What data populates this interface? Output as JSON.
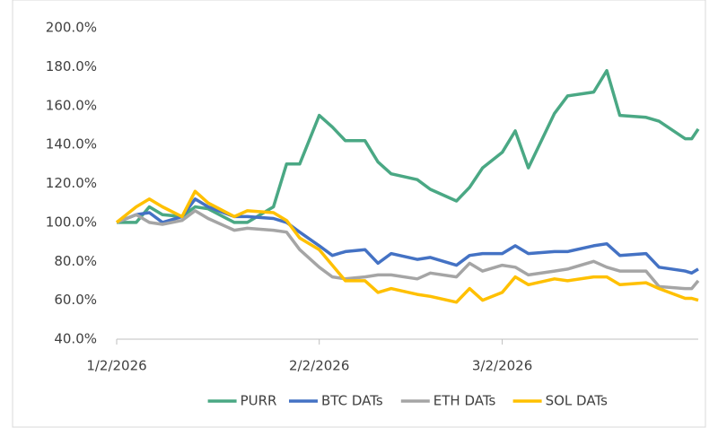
{
  "chart_data": {
    "type": "line",
    "x": [
      "1/2/2026",
      "1/5/2026",
      "1/7/2026",
      "1/9/2026",
      "1/12/2026",
      "1/14/2026",
      "1/16/2026",
      "1/20/2026",
      "1/22/2026",
      "1/26/2026",
      "1/28/2026",
      "1/30/2026",
      "2/2/2026",
      "2/4/2026",
      "2/6/2026",
      "2/9/2026",
      "2/11/2026",
      "2/13/2026",
      "2/17/2026",
      "2/19/2026",
      "2/23/2026",
      "2/25/2026",
      "2/27/2026",
      "3/2/2026",
      "3/4/2026",
      "3/6/2026",
      "3/10/2026",
      "3/12/2026",
      "3/16/2026",
      "3/18/2026",
      "3/20/2026",
      "3/24/2026",
      "3/26/2026",
      "3/30/2026",
      "3/31/2026",
      "4/1/2026"
    ],
    "series": [
      {
        "name": "PURR",
        "color": "#4aa884",
        "values": [
          100,
          100,
          108,
          104,
          103,
          108,
          107,
          100,
          100,
          108,
          130,
          130,
          155,
          149,
          142,
          142,
          131,
          125,
          122,
          117,
          111,
          118,
          128,
          136,
          147,
          128,
          156,
          165,
          167,
          178,
          155,
          154,
          152,
          143,
          143,
          148
        ]
      },
      {
        "name": "BTC DATs",
        "color": "#4472c4",
        "values": [
          100,
          104,
          105,
          100,
          103,
          112,
          108,
          103,
          103,
          102,
          100,
          95,
          88,
          83,
          85,
          86,
          79,
          84,
          81,
          82,
          78,
          83,
          84,
          84,
          88,
          84,
          85,
          85,
          88,
          89,
          83,
          84,
          77,
          75,
          74,
          76
        ]
      },
      {
        "name": "ETH DATs",
        "color": "#a5a5a5",
        "values": [
          100,
          104,
          100,
          99,
          101,
          106,
          102,
          96,
          97,
          96,
          95,
          86,
          77,
          72,
          71,
          72,
          73,
          73,
          71,
          74,
          72,
          79,
          75,
          78,
          77,
          73,
          75,
          76,
          80,
          77,
          75,
          75,
          67,
          66,
          66,
          70
        ]
      },
      {
        "name": "SOL DATs",
        "color": "#ffc000",
        "values": [
          100,
          108,
          112,
          108,
          103,
          116,
          110,
          103,
          106,
          105,
          101,
          92,
          86,
          78,
          70,
          70,
          64,
          66,
          63,
          62,
          59,
          66,
          60,
          64,
          72,
          68,
          71,
          70,
          72,
          72,
          68,
          69,
          66,
          61,
          61,
          60
        ]
      }
    ],
    "xlim": [
      "1/2/2026",
      "4/1/2026"
    ],
    "xticks": [
      "1/2/2026",
      "2/2/2026",
      "3/2/2026"
    ],
    "ylim": [
      40,
      200
    ],
    "yticks": [
      {
        "value": 40,
        "label": "40.0%"
      },
      {
        "value": 60,
        "label": "60.0%"
      },
      {
        "value": 80,
        "label": "80.0%"
      },
      {
        "value": 100,
        "label": "100.0%"
      },
      {
        "value": 120,
        "label": "120.0%"
      },
      {
        "value": 140,
        "label": "140.0%"
      },
      {
        "value": 160,
        "label": "160.0%"
      },
      {
        "value": 180,
        "label": "180.0%"
      },
      {
        "value": 200,
        "label": "200.0%"
      }
    ],
    "grid": false,
    "legend": "bottom"
  }
}
